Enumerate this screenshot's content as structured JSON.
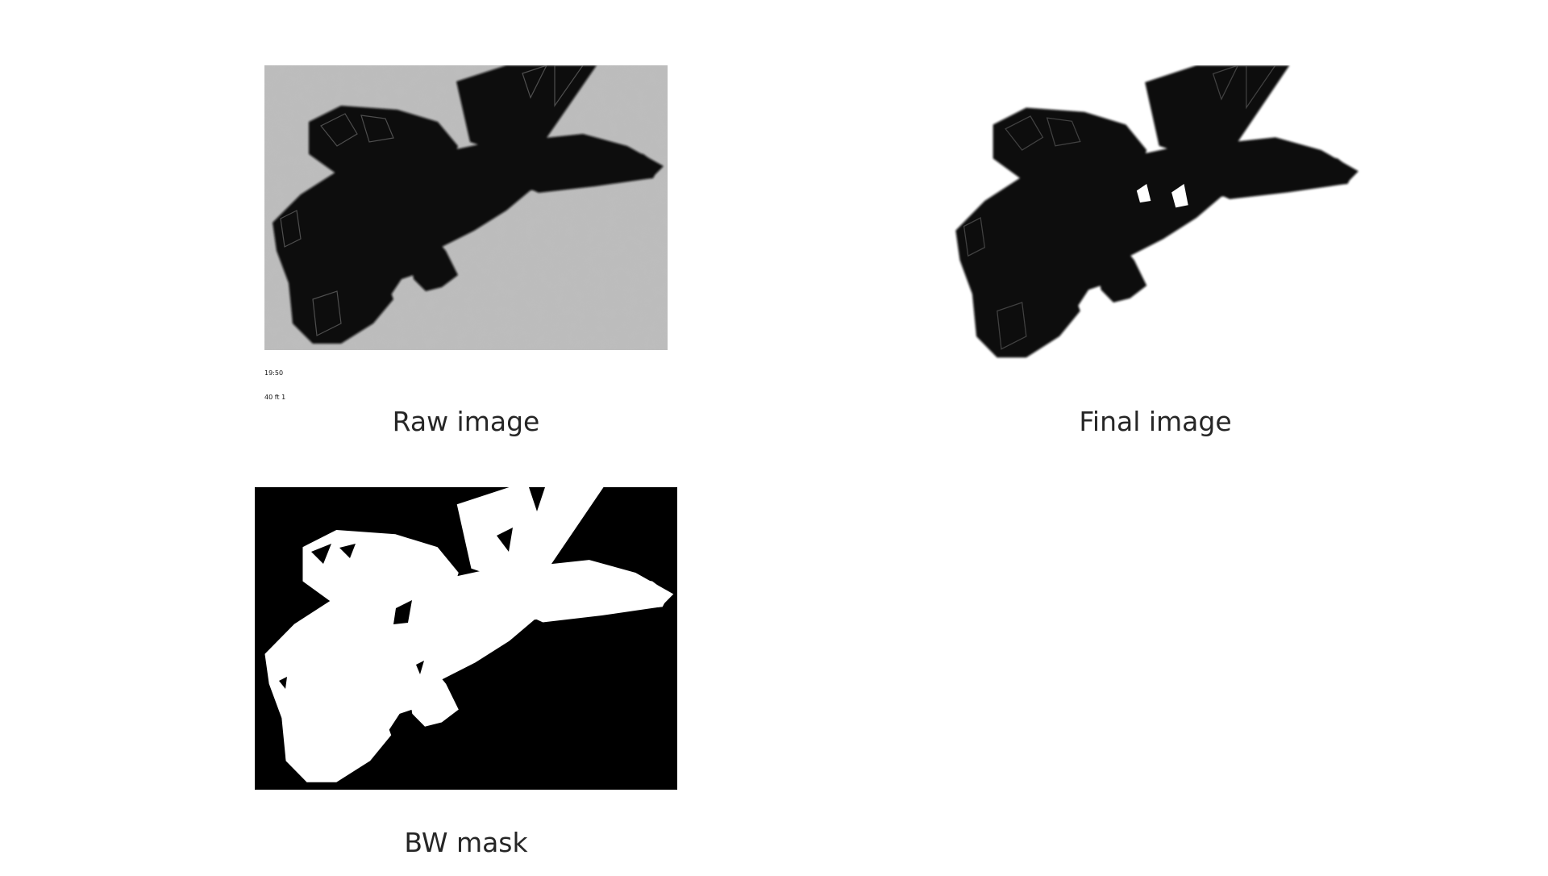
{
  "panels": {
    "raw": {
      "title": "Raw image",
      "stamp_line1": "19:50",
      "stamp_line2": "40 ft 1"
    },
    "final": {
      "title": "Final image"
    },
    "mask": {
      "title": "BW mask"
    }
  },
  "colors": {
    "background": "#ffffff",
    "raw_background": "#c2c2c2",
    "particle": "#0d0d0d",
    "mask_background": "#000000",
    "mask_foreground": "#ffffff",
    "caption_text": "#262626"
  }
}
